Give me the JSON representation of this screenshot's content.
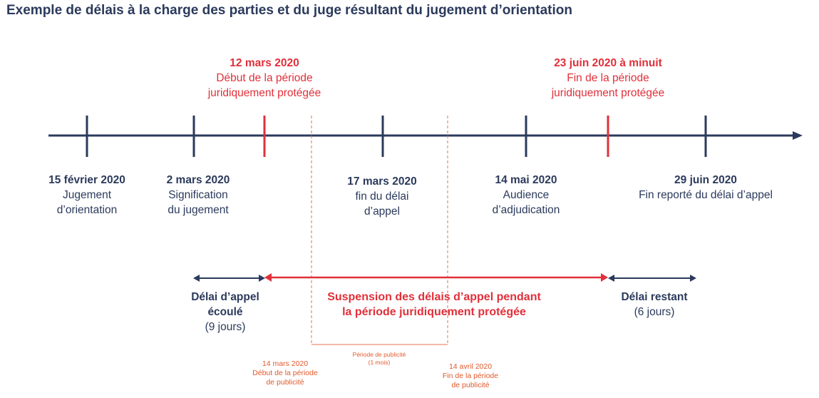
{
  "title": "Exemple de délais à la charge des parties et du juge résultant du jugement d’orientation",
  "colors": {
    "navy": "#2b3a5c",
    "red": "#e0303a",
    "orange": "#e0603a"
  },
  "top_events": [
    {
      "date": "12 mars 2020",
      "line1": "Début de la période",
      "line2": "juridiquement protégée"
    },
    {
      "date": "23 juin 2020 à minuit",
      "line1": "Fin de la période",
      "line2": "juridiquement protégée"
    }
  ],
  "bottom_events": [
    {
      "date": "15 février 2020",
      "line1": "Jugement",
      "line2": "d’orientation"
    },
    {
      "date": "2 mars 2020",
      "line1": "Signification",
      "line2": "du jugement"
    },
    {
      "date": "17 mars 2020",
      "line1": "fin du délai",
      "line2": "d’appel"
    },
    {
      "date": "14 mai 2020",
      "line1": "Audience",
      "line2": "d’adjudication"
    },
    {
      "date": "29 juin 2020",
      "line1": "Fin reporté du délai d’appel",
      "line2": ""
    }
  ],
  "spans": {
    "elapsed": {
      "line1": "Délai d’appel",
      "line2": "écoulé",
      "line3": "(9 jours)"
    },
    "suspension": {
      "line1": "Suspension des délais d’appel pendant",
      "line2": "la période juridiquement protégée"
    },
    "remaining": {
      "line1": "Délai restant",
      "line2": "(6 jours)"
    }
  },
  "publicity": {
    "start": {
      "line1": "14 mars 2020",
      "line2": "Début de la période",
      "line3": "de publicité"
    },
    "period": {
      "line1": "Période de publicité",
      "line2": "(1 mois)"
    },
    "end": {
      "line1": "14 avril 2020",
      "line2": "Fin de la période",
      "line3": "de publicité"
    }
  }
}
